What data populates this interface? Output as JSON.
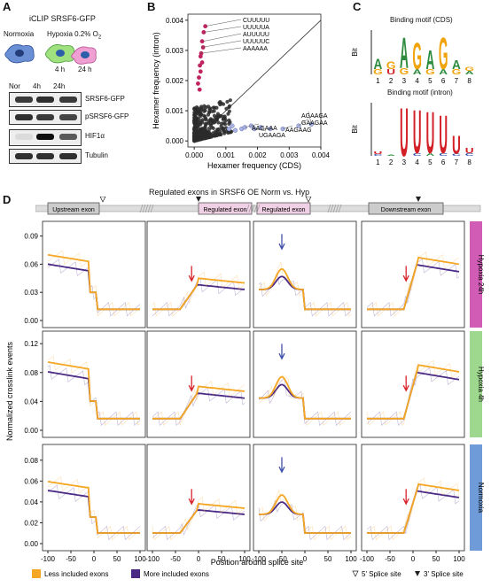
{
  "panelA": {
    "label": "A",
    "title": "iCLIP SRSF6-GFP",
    "cond_normoxia": "Normoxia",
    "cond_hypoxia": "Hypoxia 0.2% O",
    "sub2": "2",
    "time4": "4 h",
    "time24": "24 h",
    "lanes": [
      "Nor",
      "4h",
      "24h"
    ],
    "blots": [
      {
        "name": "SRSF6-GFP",
        "intensity": [
          0.8,
          0.85,
          0.8
        ]
      },
      {
        "name": "pSRSF6-GFP",
        "intensity": [
          0.85,
          0.8,
          0.75
        ]
      },
      {
        "name": "HIF1α",
        "intensity": [
          0.05,
          1.0,
          0.65
        ]
      },
      {
        "name": "Tubulin",
        "intensity": [
          0.85,
          0.85,
          0.85
        ]
      }
    ]
  },
  "panelB": {
    "label": "B",
    "upper_labels": [
      "CUUUUU",
      "UUUUUA",
      "AUUUUU",
      "UUUUUC",
      "AAAAAA"
    ],
    "lower_labels": [
      "AGAAGA",
      "GAAGAA",
      "AAGAAG",
      "AAGAAA",
      "UGAAGA"
    ]
  },
  "panelC": {
    "label": "C",
    "title_cds": "Binding motif (CDS)",
    "title_intron": "Binding motif (intron)",
    "ylabel": "Bit",
    "positions": [
      "1",
      "2",
      "3",
      "4",
      "5",
      "6",
      "7",
      "8"
    ]
  },
  "panelD": {
    "label": "D",
    "title": "Regulated exons in SRSF6 OE Norm vs. Hyp",
    "exons": [
      "Upstream exon",
      "Regulated exon",
      "Regulated exon",
      "Downstream exon"
    ],
    "rows": [
      "Hypoxia 24h",
      "Hypoxia 4h",
      "Normoxia"
    ],
    "row_colors": [
      "#d05cb5",
      "#9ed88e",
      "#6f9bd8"
    ],
    "xticks": [
      "-100",
      "-50",
      "0",
      "50",
      "100"
    ],
    "xlabel": "Position around splice site",
    "ylabel": "Normalized crosslink events",
    "legend_less": "Less included exons",
    "legend_more": "More included exons",
    "legend_5ss": "5' Splice site",
    "legend_3ss": "3' Splice site",
    "color_less": "#f5a623",
    "color_more": "#4b2a85"
  },
  "chart_data": [
    {
      "type": "scatter",
      "xlabel": "Hexamer frequency (CDS)",
      "ylabel": "Hexamer frequency (intron)",
      "xlim": [
        -0.0002,
        0.004
      ],
      "ylim": [
        -0.0002,
        0.0042
      ],
      "xticks": [
        "0.000",
        "0.001",
        "0.002",
        "0.003",
        "0.004"
      ],
      "yticks": [
        "0.000",
        "0.001",
        "0.002",
        "0.003",
        "0.004"
      ],
      "labeled_points": [
        {
          "label": "CUUUUU",
          "x": 0.00035,
          "y": 0.0038
        },
        {
          "label": "UUUUUA",
          "x": 0.0003,
          "y": 0.0036
        },
        {
          "label": "AUUUUU",
          "x": 0.00028,
          "y": 0.0033
        },
        {
          "label": "UUUUUC",
          "x": 0.00022,
          "y": 0.0031
        },
        {
          "label": "AAAAAA",
          "x": 0.0002,
          "y": 0.0029
        },
        {
          "label": "AGAAGA",
          "x": 0.0037,
          "y": 0.00055
        },
        {
          "label": "GAAGAA",
          "x": 0.0033,
          "y": 0.0005
        },
        {
          "label": "AAGAAG",
          "x": 0.0028,
          "y": 0.0004
        },
        {
          "label": "AAGAAA",
          "x": 0.0016,
          "y": 0.00045
        },
        {
          "label": "UGAAGA",
          "x": 0.0019,
          "y": 0.0004
        }
      ]
    },
    {
      "type": "line",
      "title": "Regulated exons in SRSF6 OE Norm vs. Hyp",
      "xlabel": "Position around splice site",
      "ylabel": "Normalized crosslink events",
      "x": [
        -100,
        -50,
        0,
        50,
        100
      ],
      "facets": {
        "rows": [
          "Hypoxia 24h",
          "Hypoxia 4h",
          "Normoxia"
        ],
        "columns": [
          "Upstream exon 5'SS",
          "Regulated exon 3'SS",
          "Regulated exon 5'SS",
          "Downstream exon 3'SS"
        ]
      },
      "series": [
        {
          "name": "Less included exons",
          "color": "#f5a623"
        },
        {
          "name": "More included exons",
          "color": "#4b2a85"
        }
      ],
      "yticks": [
        [
          "0.00",
          "0.03",
          "0.06",
          "0.09"
        ],
        [
          "0.00",
          "0.04",
          "0.08",
          "0.12"
        ],
        [
          "0.00",
          "0.02",
          "0.04",
          "0.06",
          "0.08"
        ]
      ]
    }
  ]
}
